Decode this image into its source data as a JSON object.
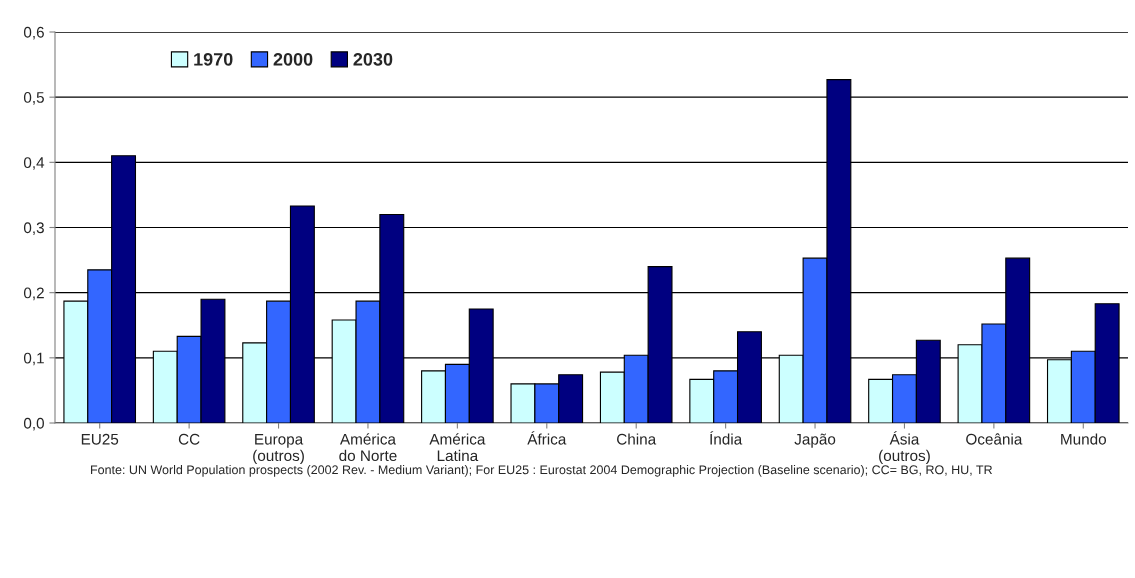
{
  "chart_data": {
    "type": "bar",
    "categories": [
      "EU25",
      "CC",
      "Europa\n(outros)",
      "América\ndo Norte",
      "América\nLatina",
      "África",
      "China",
      "Índia",
      "Japão",
      "Ásia\n(outros)",
      "Oceânia",
      "Mundo"
    ],
    "series": [
      {
        "name": "1970",
        "color": "#ccffff",
        "values": [
          0.187,
          0.11,
          0.123,
          0.158,
          0.08,
          0.06,
          0.078,
          0.067,
          0.104,
          0.067,
          0.12,
          0.097
        ]
      },
      {
        "name": "2000",
        "color": "#3366ff",
        "values": [
          0.235,
          0.133,
          0.187,
          0.187,
          0.09,
          0.06,
          0.104,
          0.08,
          0.253,
          0.074,
          0.152,
          0.11
        ]
      },
      {
        "name": "2030",
        "color": "#000080",
        "values": [
          0.41,
          0.19,
          0.333,
          0.32,
          0.175,
          0.074,
          0.24,
          0.14,
          0.527,
          0.127,
          0.253,
          0.183
        ]
      }
    ],
    "ylim": [
      0,
      0.6
    ],
    "yticks": [
      {
        "value": 0,
        "label": "0,0"
      },
      {
        "value": 0.1,
        "label": "0,1"
      },
      {
        "value": 0.2,
        "label": "0,2"
      },
      {
        "value": 0.3,
        "label": "0,3"
      },
      {
        "value": 0.4,
        "label": "0,4"
      },
      {
        "value": 0.5,
        "label": "0,5"
      },
      {
        "value": 0.6,
        "label": "0,6"
      }
    ],
    "grid": "y",
    "legend": "top left",
    "annotations": [
      "Fonte: UN World Population prospects (2002 Rev. - Medium Variant); For EU25 : Eurostat 2004 Demographic Projection (Baseline scenario); CC= BG, RO, HU, TR"
    ]
  }
}
